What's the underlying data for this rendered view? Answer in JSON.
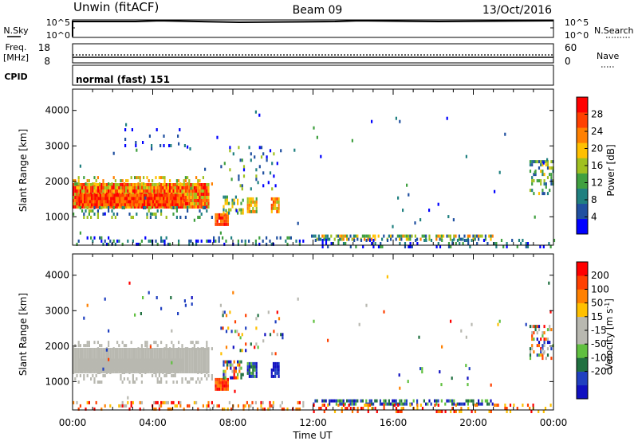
{
  "header": {
    "station": "Unwin (fitACF)",
    "beam": "Beam 09",
    "date": "13/Oct/2016"
  },
  "top_panels": {
    "nsky_label": "N.Sky",
    "nsky_ticks": [
      "10^5",
      "10^0"
    ],
    "nsearch_label": "N.Search",
    "nsearch_ticks": [
      "10^5",
      "10^0"
    ],
    "freq_label_line1": "Freq.",
    "freq_label_line2": "[MHz]",
    "freq_ticks": [
      "18",
      "8"
    ],
    "nave_label": "Nave",
    "nave_ticks": [
      "60",
      "0"
    ],
    "cpid_label": "CPID",
    "cpid_value": "normal (fast) 151"
  },
  "colors": {
    "power_scale": [
      "#0000ff",
      "#2050a0",
      "#208080",
      "#40a040",
      "#a0c020",
      "#ffc000",
      "#ff8000",
      "#ff4000",
      "#ff0000"
    ],
    "velocity_scale": [
      "#1010c0",
      "#2040c0",
      "#207040",
      "#60c040",
      "#b8b8b0",
      "#b8b8b0",
      "#ffc000",
      "#ff8000",
      "#ff4000",
      "#ff0000"
    ]
  },
  "chart_data": [
    {
      "type": "heatmap",
      "quantity": "power",
      "ylabel": "Slant Range [km]",
      "yticks": [
        "1000",
        "2000",
        "3000",
        "4000"
      ],
      "ylim": [
        200,
        4600
      ],
      "xlim": [
        0,
        24
      ],
      "colorbar_label": "Power [dB]",
      "colorbar_ticks": [
        "4",
        "8",
        "12",
        "16",
        "20",
        "24",
        "28"
      ],
      "colorbar_range": [
        0,
        32
      ]
    },
    {
      "type": "heatmap",
      "quantity": "velocity",
      "ylabel": "Slant Range [km]",
      "yticks": [
        "1000",
        "2000",
        "3000",
        "4000"
      ],
      "ylim": [
        200,
        4600
      ],
      "xlim": [
        0,
        24
      ],
      "xlabel": "Time UT",
      "xticks": [
        "00:00",
        "04:00",
        "08:00",
        "12:00",
        "16:00",
        "20:00",
        "00:00"
      ],
      "colorbar_label": "Velocity [m s",
      "colorbar_label_sup": "-1",
      "colorbar_label_end": "]",
      "colorbar_ticks": [
        "200",
        "100",
        "50",
        "15",
        "-15",
        "-50",
        "-100",
        "-200"
      ]
    }
  ]
}
